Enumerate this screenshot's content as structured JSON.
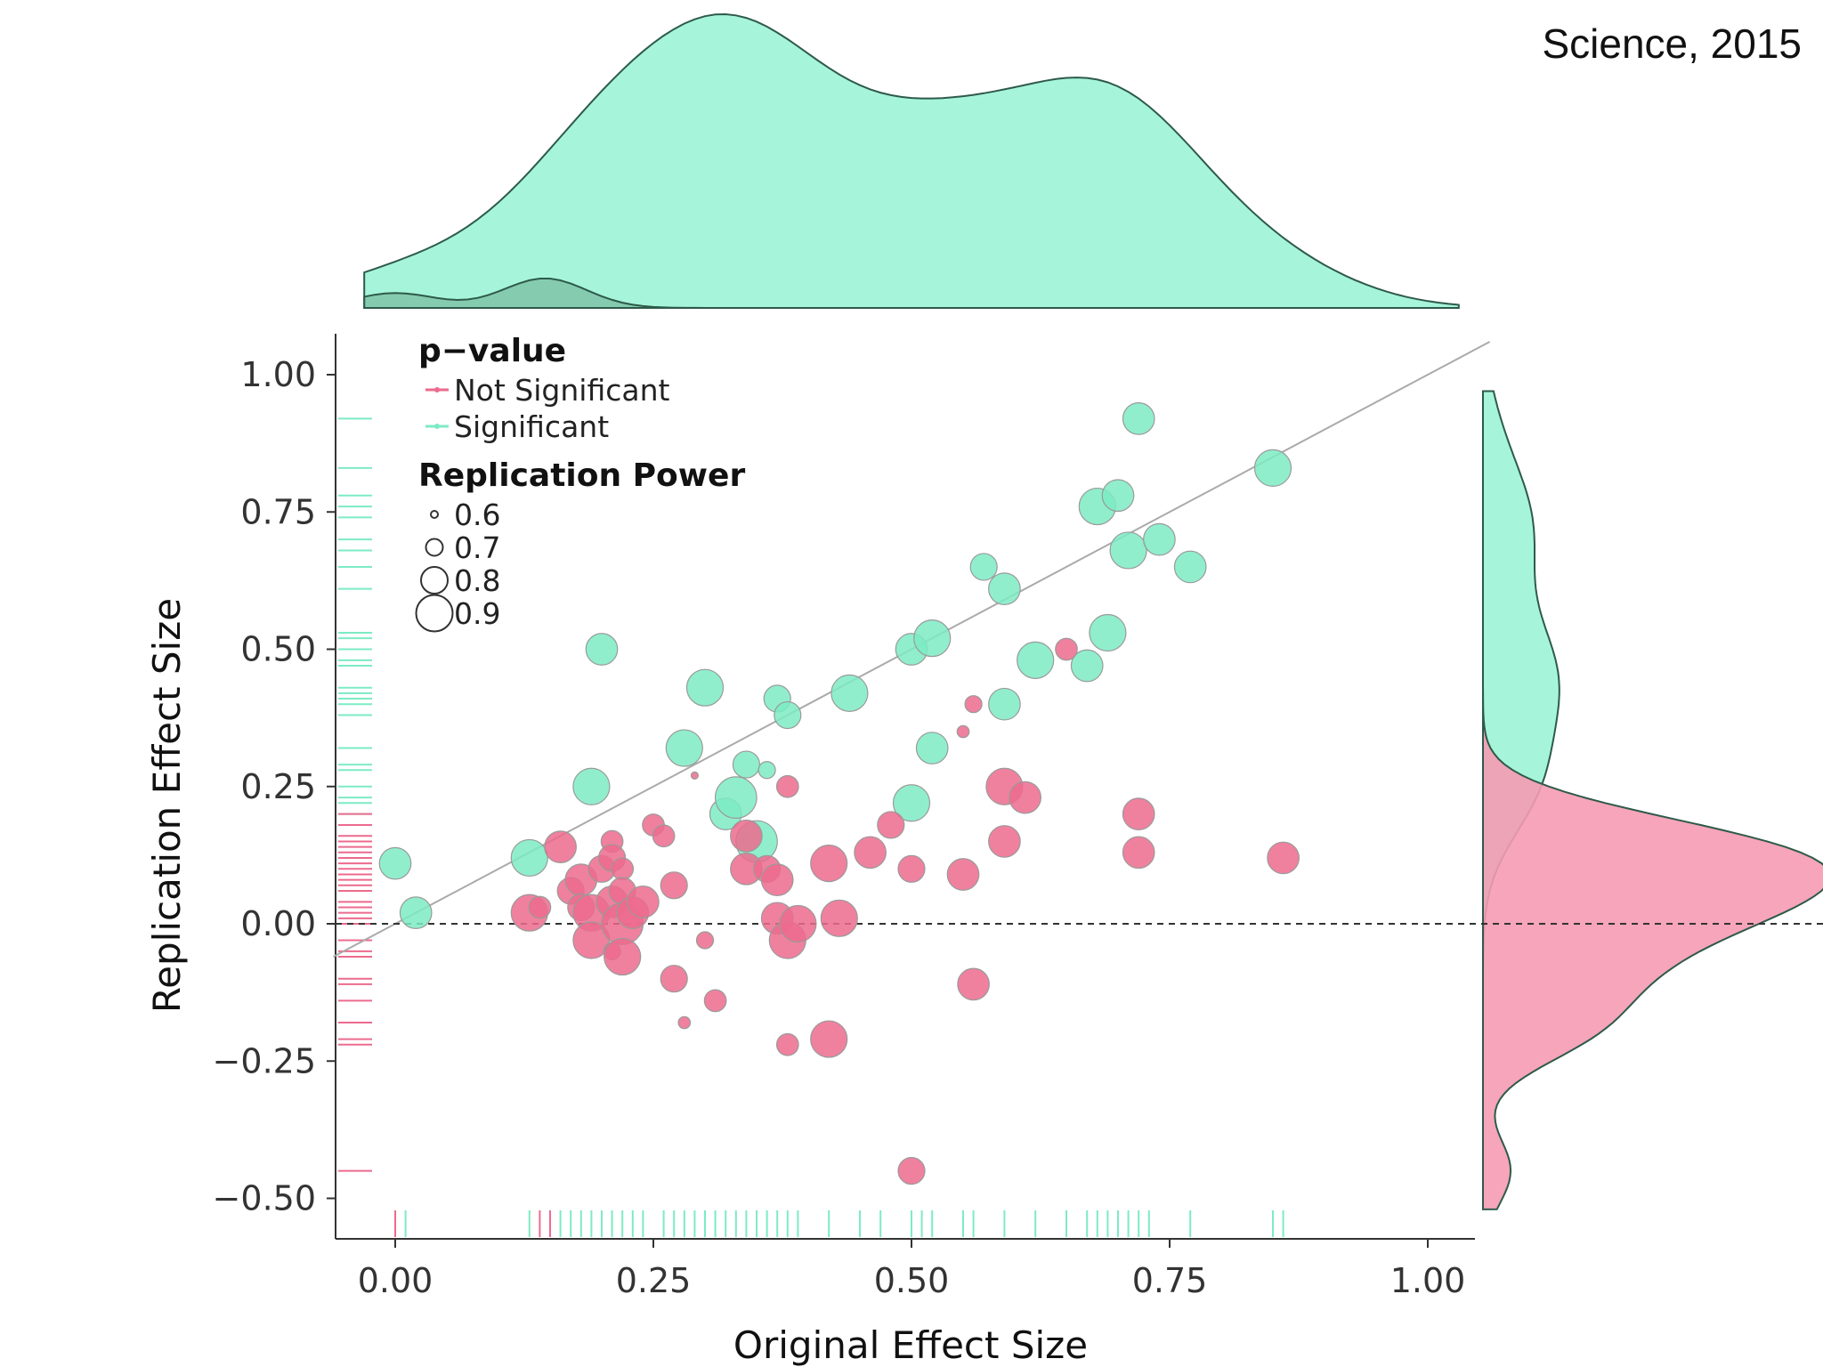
{
  "credit": "Science, 2015",
  "colors": {
    "significant": "#7DEBC4",
    "significant_fill": "#A6F5DA",
    "not_significant": "#EC6B8D",
    "not_significant_fill": "#F59BB2",
    "axis": "#333333",
    "identity_line": "#AAAAAA"
  },
  "chart_data": {
    "type": "scatter",
    "xlabel": "Original Effect Size",
    "ylabel": "Replication Effect Size",
    "xlim": [
      -0.1,
      1.05
    ],
    "ylim": [
      -0.58,
      1.08
    ],
    "x_ticks": [
      0.0,
      0.25,
      0.5,
      0.75,
      1.0
    ],
    "x_tick_labels": [
      "0.00",
      "0.25",
      "0.50",
      "0.75",
      "1.00"
    ],
    "y_ticks": [
      1.0,
      0.75,
      0.5,
      0.25,
      0.0,
      -0.25,
      -0.5
    ],
    "y_tick_labels": [
      "1.00",
      "0.75",
      "0.50",
      "0.25",
      "0.00",
      "−0.25",
      "−0.50"
    ],
    "legend": {
      "pvalue_title": "p−value",
      "pvalue_items": [
        {
          "label": "Not Significant",
          "key": "not_significant"
        },
        {
          "label": "Significant",
          "key": "significant"
        }
      ],
      "power_title": "Replication Power",
      "power_items": [
        {
          "label": "0.6",
          "power": 0.6
        },
        {
          "label": "0.7",
          "power": 0.7
        },
        {
          "label": "0.8",
          "power": 0.8
        },
        {
          "label": "0.9",
          "power": 0.9
        }
      ],
      "position": "top-left"
    },
    "reference_lines": [
      {
        "type": "identity",
        "slope": 1,
        "intercept": 0
      },
      {
        "type": "horizontal-dashed",
        "y": 0
      }
    ],
    "series": [
      {
        "name": "Significant",
        "key": "significant",
        "points": [
          [
            0.0,
            0.11,
            0.85
          ],
          [
            0.02,
            0.02,
            0.85
          ],
          [
            0.13,
            0.12,
            0.9
          ],
          [
            0.19,
            0.25,
            0.9
          ],
          [
            0.2,
            0.5,
            0.85
          ],
          [
            0.28,
            0.32,
            0.9
          ],
          [
            0.3,
            0.43,
            0.9
          ],
          [
            0.32,
            0.2,
            0.85
          ],
          [
            0.33,
            0.23,
            0.95
          ],
          [
            0.34,
            0.29,
            0.8
          ],
          [
            0.35,
            0.15,
            0.95
          ],
          [
            0.36,
            0.28,
            0.7
          ],
          [
            0.37,
            0.41,
            0.8
          ],
          [
            0.38,
            0.38,
            0.8
          ],
          [
            0.44,
            0.42,
            0.9
          ],
          [
            0.5,
            0.22,
            0.9
          ],
          [
            0.5,
            0.5,
            0.85
          ],
          [
            0.52,
            0.52,
            0.9
          ],
          [
            0.52,
            0.32,
            0.85
          ],
          [
            0.57,
            0.65,
            0.8
          ],
          [
            0.59,
            0.61,
            0.85
          ],
          [
            0.59,
            0.4,
            0.85
          ],
          [
            0.62,
            0.48,
            0.9
          ],
          [
            0.67,
            0.47,
            0.85
          ],
          [
            0.68,
            0.76,
            0.9
          ],
          [
            0.7,
            0.78,
            0.85
          ],
          [
            0.69,
            0.53,
            0.9
          ],
          [
            0.71,
            0.68,
            0.9
          ],
          [
            0.72,
            0.92,
            0.85
          ],
          [
            0.74,
            0.7,
            0.85
          ],
          [
            0.77,
            0.65,
            0.85
          ],
          [
            0.85,
            0.83,
            0.9
          ]
        ]
      },
      {
        "name": "Not Significant",
        "key": "not_significant",
        "points": [
          [
            0.13,
            0.02,
            0.9
          ],
          [
            0.14,
            0.03,
            0.75
          ],
          [
            0.16,
            0.14,
            0.85
          ],
          [
            0.17,
            0.06,
            0.8
          ],
          [
            0.18,
            0.08,
            0.85
          ],
          [
            0.18,
            0.03,
            0.8
          ],
          [
            0.19,
            0.02,
            0.9
          ],
          [
            0.19,
            -0.03,
            0.9
          ],
          [
            0.2,
            0.1,
            0.8
          ],
          [
            0.21,
            0.15,
            0.75
          ],
          [
            0.21,
            0.12,
            0.8
          ],
          [
            0.21,
            0.04,
            0.85
          ],
          [
            0.21,
            -0.05,
            0.7
          ],
          [
            0.22,
            0.1,
            0.75
          ],
          [
            0.22,
            0.06,
            0.8
          ],
          [
            0.22,
            0.0,
            0.95
          ],
          [
            0.22,
            -0.06,
            0.9
          ],
          [
            0.23,
            0.02,
            0.85
          ],
          [
            0.24,
            0.04,
            0.85
          ],
          [
            0.25,
            0.18,
            0.75
          ],
          [
            0.26,
            0.16,
            0.75
          ],
          [
            0.27,
            0.07,
            0.8
          ],
          [
            0.27,
            -0.1,
            0.8
          ],
          [
            0.28,
            -0.18,
            0.65
          ],
          [
            0.29,
            0.27,
            0.6
          ],
          [
            0.3,
            -0.03,
            0.7
          ],
          [
            0.31,
            -0.14,
            0.75
          ],
          [
            0.34,
            0.1,
            0.85
          ],
          [
            0.34,
            0.16,
            0.85
          ],
          [
            0.36,
            0.1,
            0.8
          ],
          [
            0.37,
            0.08,
            0.85
          ],
          [
            0.37,
            0.01,
            0.85
          ],
          [
            0.38,
            0.25,
            0.75
          ],
          [
            0.38,
            -0.03,
            0.9
          ],
          [
            0.38,
            -0.22,
            0.75
          ],
          [
            0.39,
            0.0,
            0.9
          ],
          [
            0.42,
            0.11,
            0.9
          ],
          [
            0.42,
            -0.21,
            0.9
          ],
          [
            0.43,
            0.01,
            0.9
          ],
          [
            0.46,
            0.13,
            0.85
          ],
          [
            0.48,
            0.18,
            0.8
          ],
          [
            0.5,
            0.1,
            0.8
          ],
          [
            0.5,
            -0.45,
            0.8
          ],
          [
            0.55,
            0.09,
            0.85
          ],
          [
            0.55,
            0.35,
            0.65
          ],
          [
            0.56,
            0.4,
            0.7
          ],
          [
            0.56,
            -0.11,
            0.85
          ],
          [
            0.59,
            0.25,
            0.9
          ],
          [
            0.59,
            0.15,
            0.85
          ],
          [
            0.61,
            0.23,
            0.85
          ],
          [
            0.65,
            0.5,
            0.75
          ],
          [
            0.72,
            0.2,
            0.85
          ],
          [
            0.72,
            0.13,
            0.85
          ],
          [
            0.86,
            0.12,
            0.85
          ]
        ]
      }
    ],
    "marginals": {
      "top_density": {
        "axis": "x",
        "series": [
          "significant",
          "not_significant"
        ]
      },
      "right_density": {
        "axis": "y",
        "series": [
          "significant",
          "not_significant"
        ]
      },
      "rug_x": {
        "significant": [
          0.01,
          0.13,
          0.16,
          0.17,
          0.18,
          0.19,
          0.2,
          0.21,
          0.22,
          0.23,
          0.24,
          0.26,
          0.27,
          0.28,
          0.29,
          0.3,
          0.31,
          0.32,
          0.33,
          0.34,
          0.35,
          0.36,
          0.37,
          0.38,
          0.39,
          0.42,
          0.45,
          0.47,
          0.5,
          0.51,
          0.52,
          0.55,
          0.56,
          0.59,
          0.62,
          0.65,
          0.67,
          0.68,
          0.69,
          0.7,
          0.71,
          0.72,
          0.73,
          0.77,
          0.85,
          0.86
        ],
        "not_significant": [
          0.0,
          0.14,
          0.15
        ]
      },
      "rug_y": {
        "significant": [
          0.92,
          0.83,
          0.78,
          0.76,
          0.74,
          0.7,
          0.68,
          0.65,
          0.61,
          0.53,
          0.52,
          0.5,
          0.48,
          0.47,
          0.43,
          0.42,
          0.41,
          0.4,
          0.38,
          0.32,
          0.29,
          0.28,
          0.25,
          0.23,
          0.22,
          0.2
        ],
        "not_significant": [
          0.2,
          0.18,
          0.16,
          0.15,
          0.14,
          0.13,
          0.12,
          0.11,
          0.1,
          0.09,
          0.08,
          0.07,
          0.06,
          0.04,
          0.03,
          0.02,
          0.01,
          0.0,
          -0.03,
          -0.05,
          -0.06,
          -0.1,
          -0.11,
          -0.14,
          -0.18,
          -0.21,
          -0.22,
          -0.45
        ]
      }
    }
  }
}
